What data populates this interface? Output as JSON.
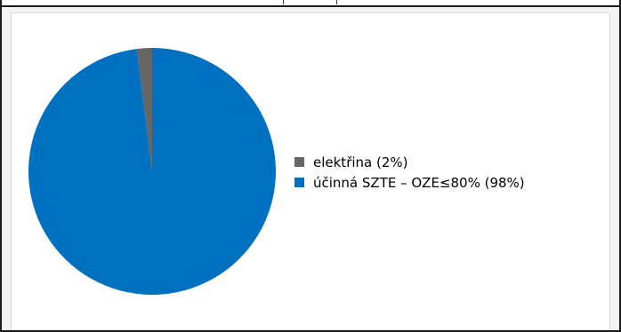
{
  "chart_data": {
    "type": "pie",
    "title": "",
    "slices": [
      {
        "label": "elektřina (2%)",
        "value": 2,
        "color": "#666666"
      },
      {
        "label": "účinná SZTE – OZE≤80% (98%)",
        "value": 98,
        "color": "#0070c0"
      }
    ],
    "legend_position": "right",
    "start_angle": "top",
    "direction": "counter-clockwise"
  }
}
